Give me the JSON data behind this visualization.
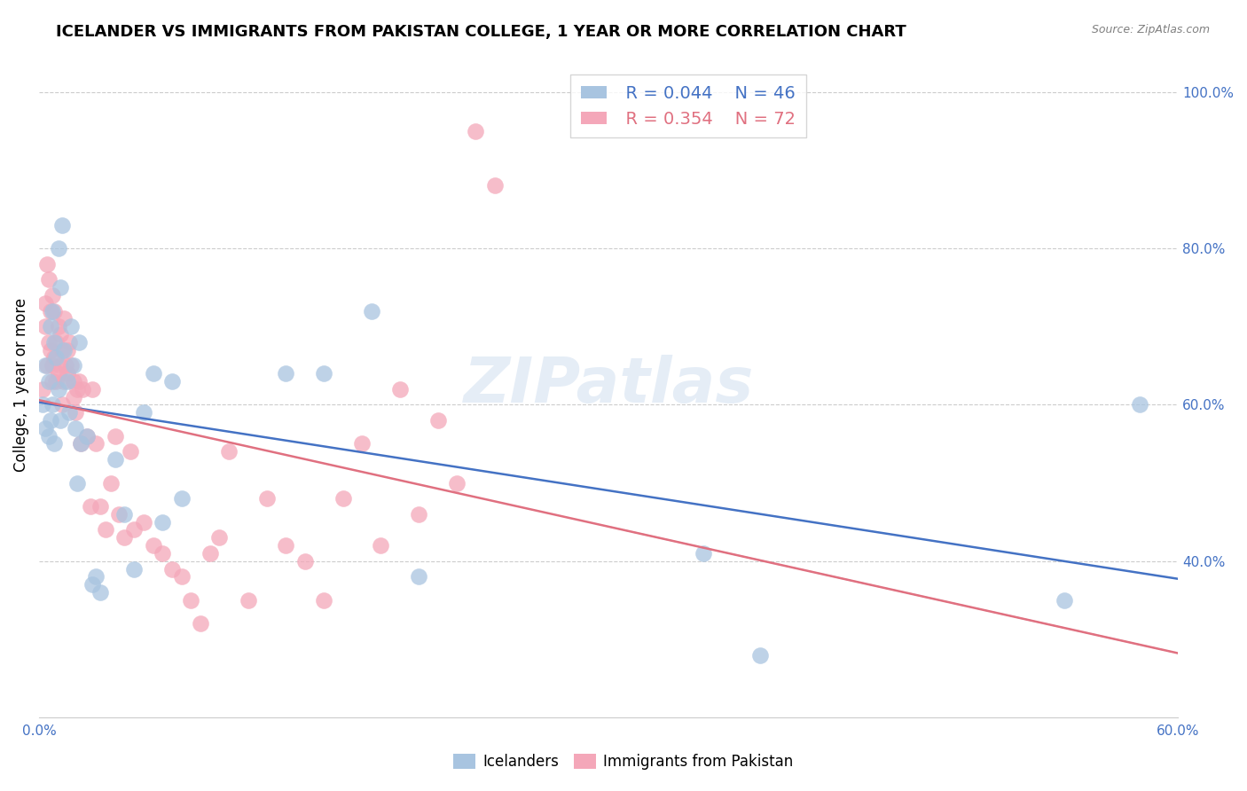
{
  "title": "ICELANDER VS IMMIGRANTS FROM PAKISTAN COLLEGE, 1 YEAR OR MORE CORRELATION CHART",
  "source": "Source: ZipAtlas.com",
  "ylabel": "College, 1 year or more",
  "xlim": [
    0.0,
    0.6
  ],
  "ylim": [
    0.2,
    1.05
  ],
  "yticks": [
    0.4,
    0.6,
    0.8,
    1.0
  ],
  "ytick_labels": [
    "40.0%",
    "60.0%",
    "80.0%",
    "100.0%"
  ],
  "legend_icelander_R": "0.044",
  "legend_icelander_N": "46",
  "legend_pakistan_R": "0.354",
  "legend_pakistan_N": "72",
  "watermark": "ZIPatlas",
  "color_icelander": "#a8c4e0",
  "color_pakistan": "#f4a7b9",
  "color_line_icelander": "#4472C4",
  "color_line_pakistan": "#E07080",
  "icelander_x": [
    0.002,
    0.003,
    0.003,
    0.005,
    0.005,
    0.006,
    0.006,
    0.007,
    0.007,
    0.008,
    0.008,
    0.009,
    0.01,
    0.01,
    0.011,
    0.011,
    0.012,
    0.013,
    0.015,
    0.016,
    0.017,
    0.018,
    0.019,
    0.02,
    0.021,
    0.022,
    0.025,
    0.028,
    0.03,
    0.032,
    0.04,
    0.045,
    0.05,
    0.055,
    0.06,
    0.065,
    0.07,
    0.075,
    0.13,
    0.15,
    0.175,
    0.2,
    0.35,
    0.38,
    0.54,
    0.58
  ],
  "icelander_y": [
    0.6,
    0.65,
    0.57,
    0.63,
    0.56,
    0.7,
    0.58,
    0.72,
    0.6,
    0.68,
    0.55,
    0.66,
    0.8,
    0.62,
    0.75,
    0.58,
    0.83,
    0.67,
    0.63,
    0.59,
    0.7,
    0.65,
    0.57,
    0.5,
    0.68,
    0.55,
    0.56,
    0.37,
    0.38,
    0.36,
    0.53,
    0.46,
    0.39,
    0.59,
    0.64,
    0.45,
    0.63,
    0.48,
    0.64,
    0.64,
    0.72,
    0.38,
    0.41,
    0.28,
    0.35,
    0.6
  ],
  "pakistan_x": [
    0.002,
    0.003,
    0.003,
    0.004,
    0.004,
    0.005,
    0.005,
    0.006,
    0.006,
    0.007,
    0.007,
    0.007,
    0.008,
    0.008,
    0.009,
    0.009,
    0.01,
    0.01,
    0.011,
    0.011,
    0.012,
    0.012,
    0.013,
    0.013,
    0.014,
    0.015,
    0.015,
    0.016,
    0.017,
    0.018,
    0.018,
    0.019,
    0.02,
    0.021,
    0.022,
    0.023,
    0.025,
    0.027,
    0.028,
    0.03,
    0.032,
    0.035,
    0.038,
    0.04,
    0.042,
    0.045,
    0.048,
    0.05,
    0.055,
    0.06,
    0.065,
    0.07,
    0.075,
    0.08,
    0.085,
    0.09,
    0.095,
    0.1,
    0.11,
    0.12,
    0.13,
    0.14,
    0.15,
    0.16,
    0.17,
    0.18,
    0.19,
    0.2,
    0.21,
    0.22,
    0.23,
    0.24
  ],
  "pakistan_y": [
    0.62,
    0.73,
    0.7,
    0.65,
    0.78,
    0.68,
    0.76,
    0.72,
    0.67,
    0.74,
    0.65,
    0.63,
    0.72,
    0.66,
    0.68,
    0.63,
    0.7,
    0.64,
    0.69,
    0.65,
    0.67,
    0.6,
    0.63,
    0.71,
    0.65,
    0.67,
    0.64,
    0.68,
    0.65,
    0.63,
    0.61,
    0.59,
    0.62,
    0.63,
    0.55,
    0.62,
    0.56,
    0.47,
    0.62,
    0.55,
    0.47,
    0.44,
    0.5,
    0.56,
    0.46,
    0.43,
    0.54,
    0.44,
    0.45,
    0.42,
    0.41,
    0.39,
    0.38,
    0.35,
    0.32,
    0.41,
    0.43,
    0.54,
    0.35,
    0.48,
    0.42,
    0.4,
    0.35,
    0.48,
    0.55,
    0.42,
    0.62,
    0.46,
    0.58,
    0.5,
    0.95,
    0.88
  ]
}
